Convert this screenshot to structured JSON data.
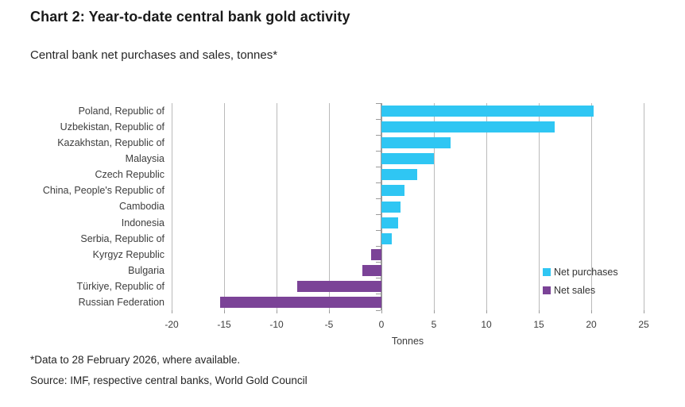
{
  "header": {
    "title": "Chart 2: Year-to-date central bank gold activity",
    "subtitle": "Central bank net purchases and sales, tonnes*"
  },
  "chart_data": {
    "type": "bar",
    "orientation": "horizontal",
    "title": "Chart 2: Year-to-date central bank gold activity",
    "subtitle": "Central bank net purchases and sales, tonnes*",
    "categories": [
      "Poland, Republic of",
      "Uzbekistan, Republic of",
      "Kazakhstan, Republic of",
      "Malaysia",
      "Czech Republic",
      "China, People's Republic of",
      "Cambodia",
      "Indonesia",
      "Serbia, Republic of",
      "Kyrgyz Republic",
      "Bulgaria",
      "Türkiye, Republic of",
      "Russian Federation"
    ],
    "values": [
      20.2,
      16.5,
      6.6,
      5.0,
      3.4,
      2.2,
      1.8,
      1.6,
      1.0,
      -1.0,
      -1.8,
      -8.0,
      -15.4
    ],
    "xlabel": "Tonnes",
    "x_ticks": [
      -20,
      -15,
      -10,
      -5,
      0,
      5,
      10,
      15,
      20,
      25
    ],
    "xlim": [
      -20,
      25
    ],
    "grid": true,
    "legend_position": "right-inside",
    "colors": {
      "net_purchases": "#2fc6f3",
      "net_sales": "#7b4397"
    },
    "legend": [
      {
        "label": "Net purchases",
        "color": "#2fc6f3"
      },
      {
        "label": "Net sales",
        "color": "#7b4397"
      }
    ]
  },
  "footer": {
    "note": "*Data to 28 February 2026, where available.",
    "source": "Source: IMF, respective central banks, World Gold Council"
  }
}
